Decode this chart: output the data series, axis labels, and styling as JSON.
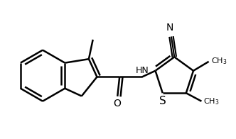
{
  "background_color": "#ffffff",
  "line_color": "#000000",
  "line_width": 1.8,
  "font_size_atom": 9,
  "font_size_label": 8,
  "figsize": [
    3.32,
    1.96
  ],
  "dpi": 100,
  "xlim": [
    -1.95,
    2.25
  ],
  "ylim": [
    -1.25,
    1.45
  ]
}
